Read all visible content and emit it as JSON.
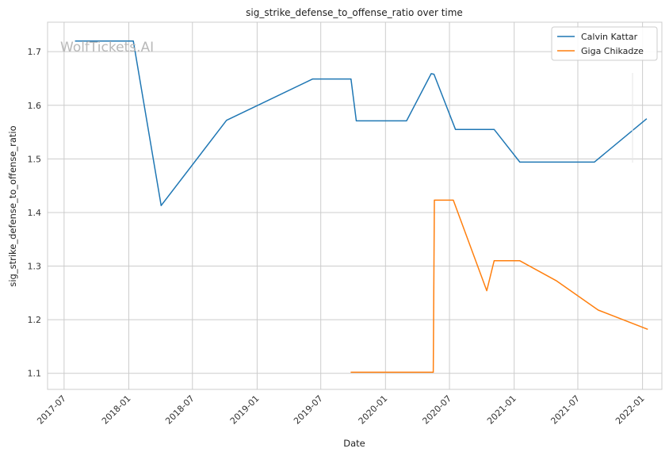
{
  "chart_data": {
    "type": "line",
    "title": "sig_strike_defense_to_offense_ratio over time",
    "xlabel": "Date",
    "ylabel": "sig_strike_defense_to_offense_ratio",
    "watermark": "WolfTickets.AI",
    "x_ticks": [
      "2017-07",
      "2018-01",
      "2018-07",
      "2019-01",
      "2019-07",
      "2020-01",
      "2020-07",
      "2021-01",
      "2021-07",
      "2022-01"
    ],
    "y_ticks": [
      1.1,
      1.2,
      1.3,
      1.4,
      1.5,
      1.6,
      1.7
    ],
    "xlim": [
      "2017-05-15",
      "2022-02-25"
    ],
    "ylim": [
      1.07,
      1.755
    ],
    "grid": true,
    "legend_position": "top-right",
    "series": [
      {
        "name": "Calvin Kattar",
        "color": "#1f77b4",
        "points": [
          [
            "2017-08-01",
            1.72
          ],
          [
            "2018-01-14",
            1.72
          ],
          [
            "2018-04-03",
            1.413
          ],
          [
            "2018-10-06",
            1.572
          ],
          [
            "2019-06-08",
            1.649
          ],
          [
            "2019-09-25",
            1.649
          ],
          [
            "2019-10-10",
            1.571
          ],
          [
            "2020-03-01",
            1.571
          ],
          [
            "2020-05-10",
            1.659
          ],
          [
            "2020-05-18",
            1.658
          ],
          [
            "2020-07-18",
            1.555
          ],
          [
            "2020-11-05",
            1.555
          ],
          [
            "2021-01-17",
            1.494
          ],
          [
            "2021-08-17",
            1.494
          ],
          [
            "2022-01-13",
            1.575
          ]
        ]
      },
      {
        "name": "Giga Chikadze",
        "color": "#ff7f0e",
        "points": [
          [
            "2019-09-24",
            1.102
          ],
          [
            "2020-05-16",
            1.102
          ],
          [
            "2020-05-19",
            1.423
          ],
          [
            "2020-07-12",
            1.423
          ],
          [
            "2020-10-15",
            1.254
          ],
          [
            "2020-11-05",
            1.31
          ],
          [
            "2021-01-17",
            1.31
          ],
          [
            "2021-04-30",
            1.273
          ],
          [
            "2021-08-28",
            1.218
          ],
          [
            "2022-01-16",
            1.182
          ]
        ]
      }
    ]
  }
}
